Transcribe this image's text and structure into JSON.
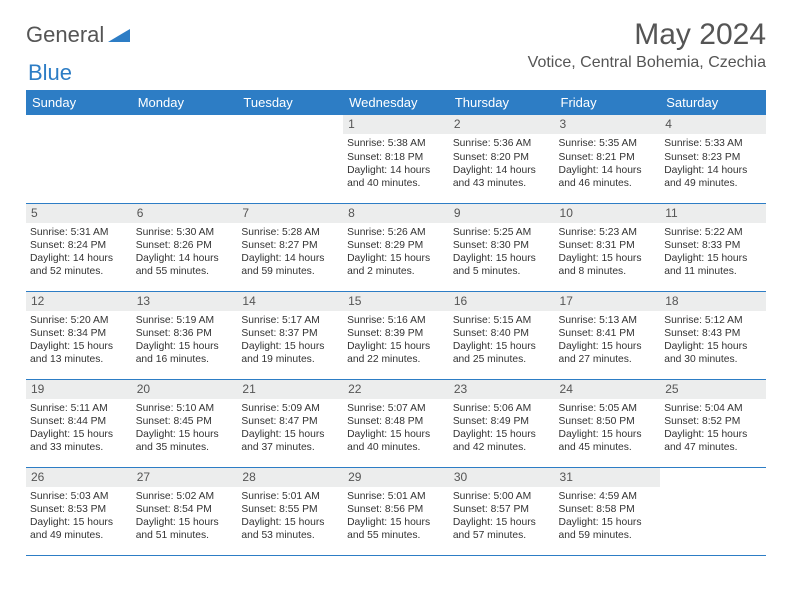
{
  "logo": {
    "part1": "General",
    "part2": "Blue"
  },
  "title": "May 2024",
  "location": "Votice, Central Bohemia, Czechia",
  "weekdays": [
    "Sunday",
    "Monday",
    "Tuesday",
    "Wednesday",
    "Thursday",
    "Friday",
    "Saturday"
  ],
  "weeks": [
    [
      null,
      null,
      null,
      {
        "n": "1",
        "sr": "5:38 AM",
        "ss": "8:18 PM",
        "d": "14 hours and 40 minutes."
      },
      {
        "n": "2",
        "sr": "5:36 AM",
        "ss": "8:20 PM",
        "d": "14 hours and 43 minutes."
      },
      {
        "n": "3",
        "sr": "5:35 AM",
        "ss": "8:21 PM",
        "d": "14 hours and 46 minutes."
      },
      {
        "n": "4",
        "sr": "5:33 AM",
        "ss": "8:23 PM",
        "d": "14 hours and 49 minutes."
      }
    ],
    [
      {
        "n": "5",
        "sr": "5:31 AM",
        "ss": "8:24 PM",
        "d": "14 hours and 52 minutes."
      },
      {
        "n": "6",
        "sr": "5:30 AM",
        "ss": "8:26 PM",
        "d": "14 hours and 55 minutes."
      },
      {
        "n": "7",
        "sr": "5:28 AM",
        "ss": "8:27 PM",
        "d": "14 hours and 59 minutes."
      },
      {
        "n": "8",
        "sr": "5:26 AM",
        "ss": "8:29 PM",
        "d": "15 hours and 2 minutes."
      },
      {
        "n": "9",
        "sr": "5:25 AM",
        "ss": "8:30 PM",
        "d": "15 hours and 5 minutes."
      },
      {
        "n": "10",
        "sr": "5:23 AM",
        "ss": "8:31 PM",
        "d": "15 hours and 8 minutes."
      },
      {
        "n": "11",
        "sr": "5:22 AM",
        "ss": "8:33 PM",
        "d": "15 hours and 11 minutes."
      }
    ],
    [
      {
        "n": "12",
        "sr": "5:20 AM",
        "ss": "8:34 PM",
        "d": "15 hours and 13 minutes."
      },
      {
        "n": "13",
        "sr": "5:19 AM",
        "ss": "8:36 PM",
        "d": "15 hours and 16 minutes."
      },
      {
        "n": "14",
        "sr": "5:17 AM",
        "ss": "8:37 PM",
        "d": "15 hours and 19 minutes."
      },
      {
        "n": "15",
        "sr": "5:16 AM",
        "ss": "8:39 PM",
        "d": "15 hours and 22 minutes."
      },
      {
        "n": "16",
        "sr": "5:15 AM",
        "ss": "8:40 PM",
        "d": "15 hours and 25 minutes."
      },
      {
        "n": "17",
        "sr": "5:13 AM",
        "ss": "8:41 PM",
        "d": "15 hours and 27 minutes."
      },
      {
        "n": "18",
        "sr": "5:12 AM",
        "ss": "8:43 PM",
        "d": "15 hours and 30 minutes."
      }
    ],
    [
      {
        "n": "19",
        "sr": "5:11 AM",
        "ss": "8:44 PM",
        "d": "15 hours and 33 minutes."
      },
      {
        "n": "20",
        "sr": "5:10 AM",
        "ss": "8:45 PM",
        "d": "15 hours and 35 minutes."
      },
      {
        "n": "21",
        "sr": "5:09 AM",
        "ss": "8:47 PM",
        "d": "15 hours and 37 minutes."
      },
      {
        "n": "22",
        "sr": "5:07 AM",
        "ss": "8:48 PM",
        "d": "15 hours and 40 minutes."
      },
      {
        "n": "23",
        "sr": "5:06 AM",
        "ss": "8:49 PM",
        "d": "15 hours and 42 minutes."
      },
      {
        "n": "24",
        "sr": "5:05 AM",
        "ss": "8:50 PM",
        "d": "15 hours and 45 minutes."
      },
      {
        "n": "25",
        "sr": "5:04 AM",
        "ss": "8:52 PM",
        "d": "15 hours and 47 minutes."
      }
    ],
    [
      {
        "n": "26",
        "sr": "5:03 AM",
        "ss": "8:53 PM",
        "d": "15 hours and 49 minutes."
      },
      {
        "n": "27",
        "sr": "5:02 AM",
        "ss": "8:54 PM",
        "d": "15 hours and 51 minutes."
      },
      {
        "n": "28",
        "sr": "5:01 AM",
        "ss": "8:55 PM",
        "d": "15 hours and 53 minutes."
      },
      {
        "n": "29",
        "sr": "5:01 AM",
        "ss": "8:56 PM",
        "d": "15 hours and 55 minutes."
      },
      {
        "n": "30",
        "sr": "5:00 AM",
        "ss": "8:57 PM",
        "d": "15 hours and 57 minutes."
      },
      {
        "n": "31",
        "sr": "4:59 AM",
        "ss": "8:58 PM",
        "d": "15 hours and 59 minutes."
      },
      null
    ]
  ],
  "labels": {
    "sunrise": "Sunrise:",
    "sunset": "Sunset:",
    "daylight": "Daylight:"
  }
}
